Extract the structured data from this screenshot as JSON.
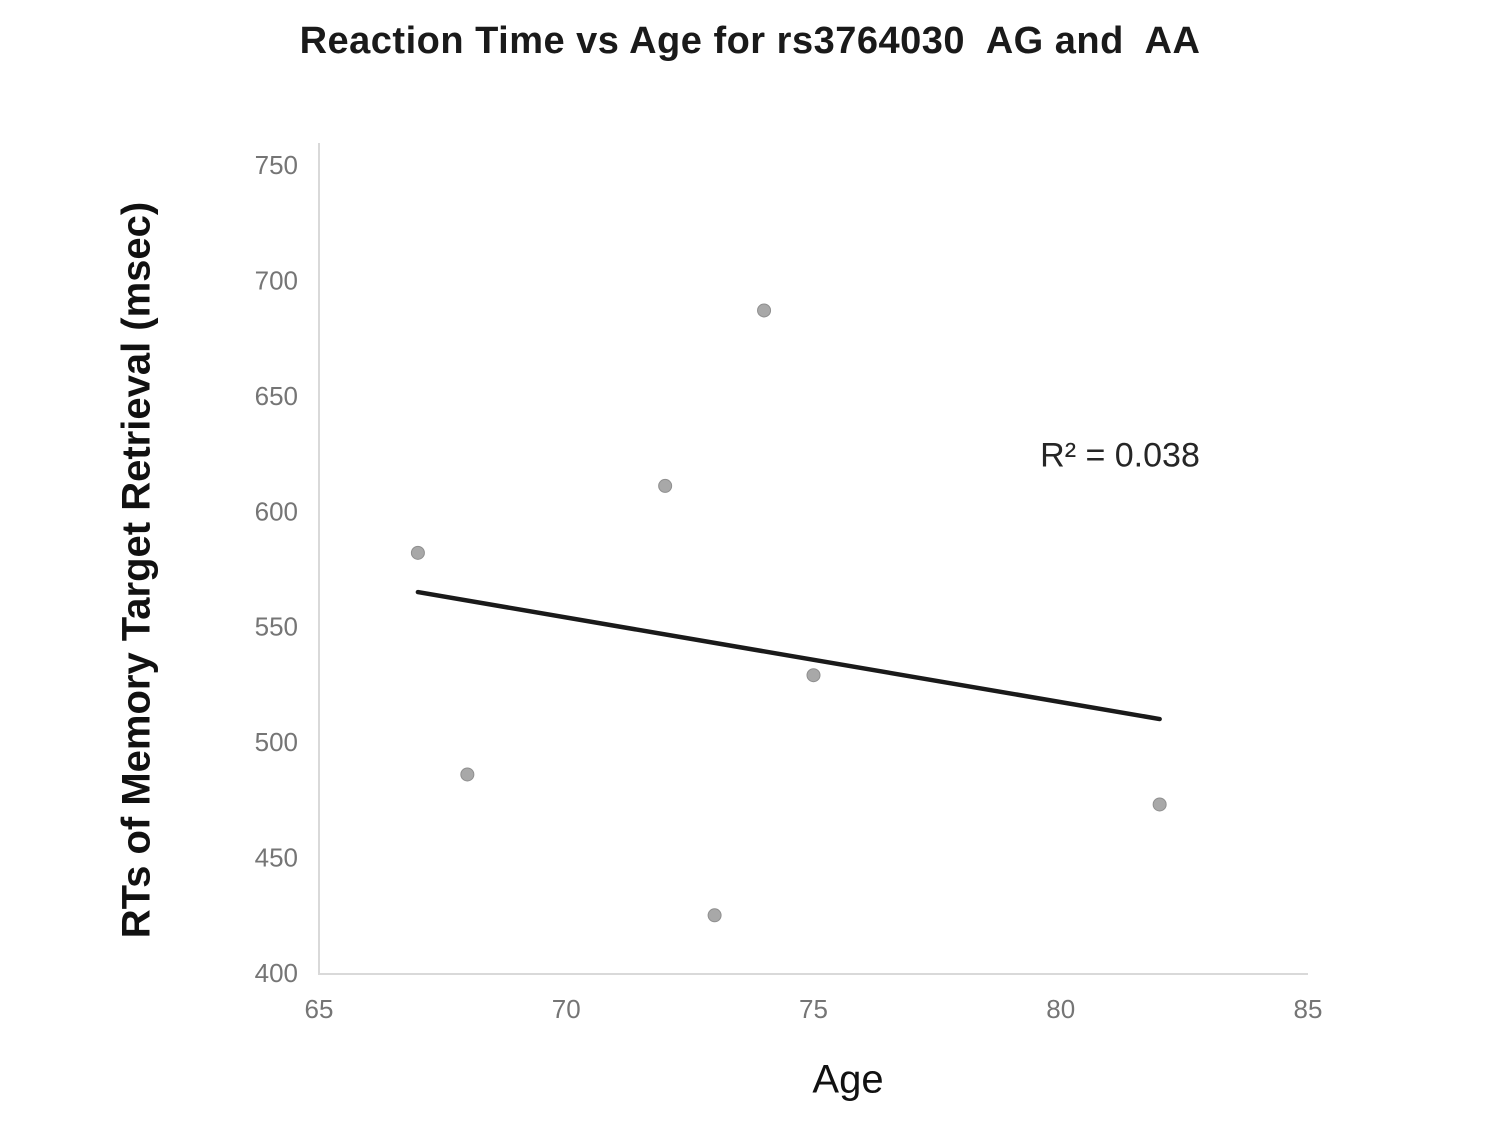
{
  "chart_data": {
    "type": "scatter",
    "title": "Reaction Time vs Age for rs3764030  AG and  AA",
    "xlabel": "Age",
    "ylabel": "RTs of Memory Target Retrieval (msec)",
    "annotation": "R² = 0.038",
    "r_squared": 0.038,
    "xlim": [
      65,
      85
    ],
    "ylim": [
      400,
      750
    ],
    "x_ticks": [
      65,
      70,
      75,
      80,
      85
    ],
    "y_ticks": [
      750,
      700,
      650,
      600,
      550,
      500,
      450,
      400
    ],
    "grid": false,
    "legend": "none",
    "series": [
      {
        "name": "rs3764030 AG and AA",
        "points": [
          {
            "age": 67,
            "rt": 582
          },
          {
            "age": 68,
            "rt": 486
          },
          {
            "age": 72,
            "rt": 611
          },
          {
            "age": 73,
            "rt": 425
          },
          {
            "age": 74,
            "rt": 687
          },
          {
            "age": 75,
            "rt": 529
          },
          {
            "age": 82,
            "rt": 473
          }
        ]
      }
    ],
    "trendline": {
      "type": "linear",
      "x1": 67,
      "y1": 565,
      "x2": 82,
      "y2": 510
    }
  },
  "colors": {
    "background": "#ffffff",
    "point_fill": "#a8a8a8",
    "point_edge": "#8f8f8f",
    "trendline": "#1a1a1a",
    "axis_line": "#d9d9d9",
    "tick_label": "#757575",
    "title_text": "#1a1a1a",
    "annotation_text": "#262626"
  }
}
